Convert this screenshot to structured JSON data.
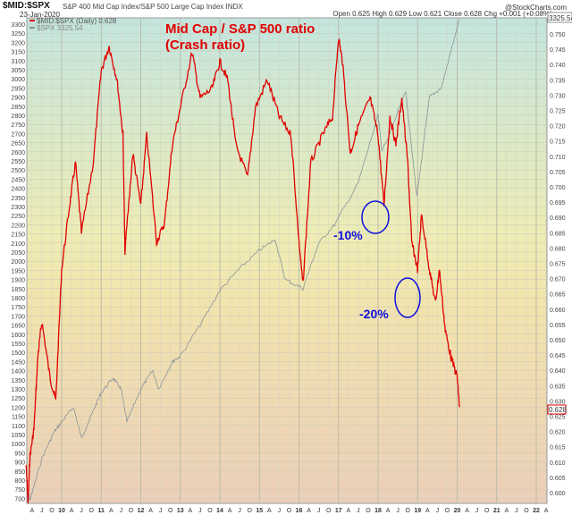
{
  "header": {
    "symbol": "$MID:$SPX",
    "description": "S&P 400 Mid Cap Index/S&P 500 Large Cap Index  INDX",
    "date": "23-Jan-2020",
    "brand": "@StockCharts.com",
    "ohlc": "Open 0.625  High 0.629  Low 0.621  Close 0.628  Chg +0.001 (+0.08%) ▲"
  },
  "chart_data": {
    "type": "line",
    "title": "Mid Cap / S&P 500 ratio",
    "subtitle": "(Crash ratio)",
    "legend": [
      "$MID:$SPX (Daily) 0.628",
      "$SPX 3325.54"
    ],
    "legend_placement": "top-left",
    "annotations": [
      {
        "text": "-10%",
        "x": 2018.15,
        "y": 0.694
      },
      {
        "text": "-20%",
        "x": 2019.35,
        "y": 0.662
      }
    ],
    "left_axis": {
      "min": 700,
      "max": 3300,
      "step": 50
    },
    "right_axis": {
      "min": 0.6,
      "max": 0.755,
      "step": 0.005
    },
    "last_labels": {
      "spx": "3325.54",
      "ratio": "0.628"
    },
    "x_ticks": [
      "A",
      "J",
      "O",
      "10",
      "A",
      "J",
      "O",
      "11",
      "A",
      "J",
      "O",
      "12",
      "A",
      "J",
      "O",
      "13",
      "A",
      "J",
      "O",
      "14",
      "A",
      "J",
      "O",
      "15",
      "A",
      "J",
      "O",
      "16",
      "A",
      "J",
      "O",
      "17",
      "A",
      "J",
      "O",
      "18",
      "A",
      "J",
      "O",
      "19",
      "A",
      "J",
      "O",
      "20",
      "A",
      "J",
      "O",
      "21",
      "A",
      "J",
      "O",
      "22",
      "A"
    ],
    "series": [
      {
        "name": "$MID:$SPX",
        "color": "#e00000",
        "axis": "right",
        "x": [
          2009.1,
          2009.15,
          2009.2,
          2009.3,
          2009.4,
          2009.5,
          2009.7,
          2009.85,
          2010.0,
          2010.2,
          2010.35,
          2010.5,
          2010.8,
          2011.0,
          2011.2,
          2011.4,
          2011.55,
          2011.6,
          2011.8,
          2012.0,
          2012.15,
          2012.4,
          2012.6,
          2012.8,
          2013.0,
          2013.3,
          2013.5,
          2013.8,
          2014.0,
          2014.2,
          2014.4,
          2014.7,
          2014.9,
          2015.2,
          2015.5,
          2015.8,
          2016.0,
          2016.1,
          2016.3,
          2016.6,
          2016.85,
          2017.0,
          2017.1,
          2017.3,
          2017.5,
          2017.8,
          2018.0,
          2018.15,
          2018.3,
          2018.45,
          2018.6,
          2018.75,
          2018.85,
          2019.0,
          2019.1,
          2019.3,
          2019.45,
          2019.55,
          2019.7,
          2019.85,
          2020.0,
          2020.06
        ],
        "y": [
          0.609,
          0.597,
          0.612,
          0.621,
          0.645,
          0.656,
          0.638,
          0.63,
          0.673,
          0.694,
          0.708,
          0.685,
          0.708,
          0.738,
          0.746,
          0.735,
          0.717,
          0.679,
          0.711,
          0.694,
          0.717,
          0.682,
          0.688,
          0.714,
          0.726,
          0.744,
          0.729,
          0.732,
          0.741,
          0.735,
          0.714,
          0.703,
          0.726,
          0.735,
          0.723,
          0.717,
          0.682,
          0.668,
          0.708,
          0.717,
          0.723,
          0.749,
          0.741,
          0.711,
          0.72,
          0.729,
          0.717,
          0.694,
          0.723,
          0.714,
          0.729,
          0.708,
          0.682,
          0.673,
          0.691,
          0.673,
          0.662,
          0.673,
          0.653,
          0.644,
          0.638,
          0.628
        ]
      },
      {
        "name": "$SPX",
        "color": "#8a939b",
        "axis": "left",
        "x": [
          2009.1,
          2009.2,
          2009.5,
          2009.8,
          2010.0,
          2010.3,
          2010.5,
          2010.8,
          2011.0,
          2011.3,
          2011.5,
          2011.65,
          2012.0,
          2012.3,
          2012.45,
          2012.8,
          2013.0,
          2013.5,
          2014.0,
          2014.5,
          2015.0,
          2015.4,
          2015.65,
          2016.1,
          2016.5,
          2016.9,
          2017.5,
          2018.0,
          2018.1,
          2018.7,
          2018.98,
          2019.3,
          2019.6,
          2019.9,
          2020.06
        ],
        "y": [
          800,
          690,
          920,
          1060,
          1120,
          1200,
          1030,
          1180,
          1280,
          1360,
          1300,
          1120,
          1300,
          1400,
          1300,
          1450,
          1480,
          1650,
          1840,
          1960,
          2060,
          2120,
          1900,
          1850,
          2100,
          2200,
          2430,
          2800,
          2600,
          2930,
          2350,
          2900,
          2950,
          3200,
          3325
        ]
      }
    ]
  }
}
